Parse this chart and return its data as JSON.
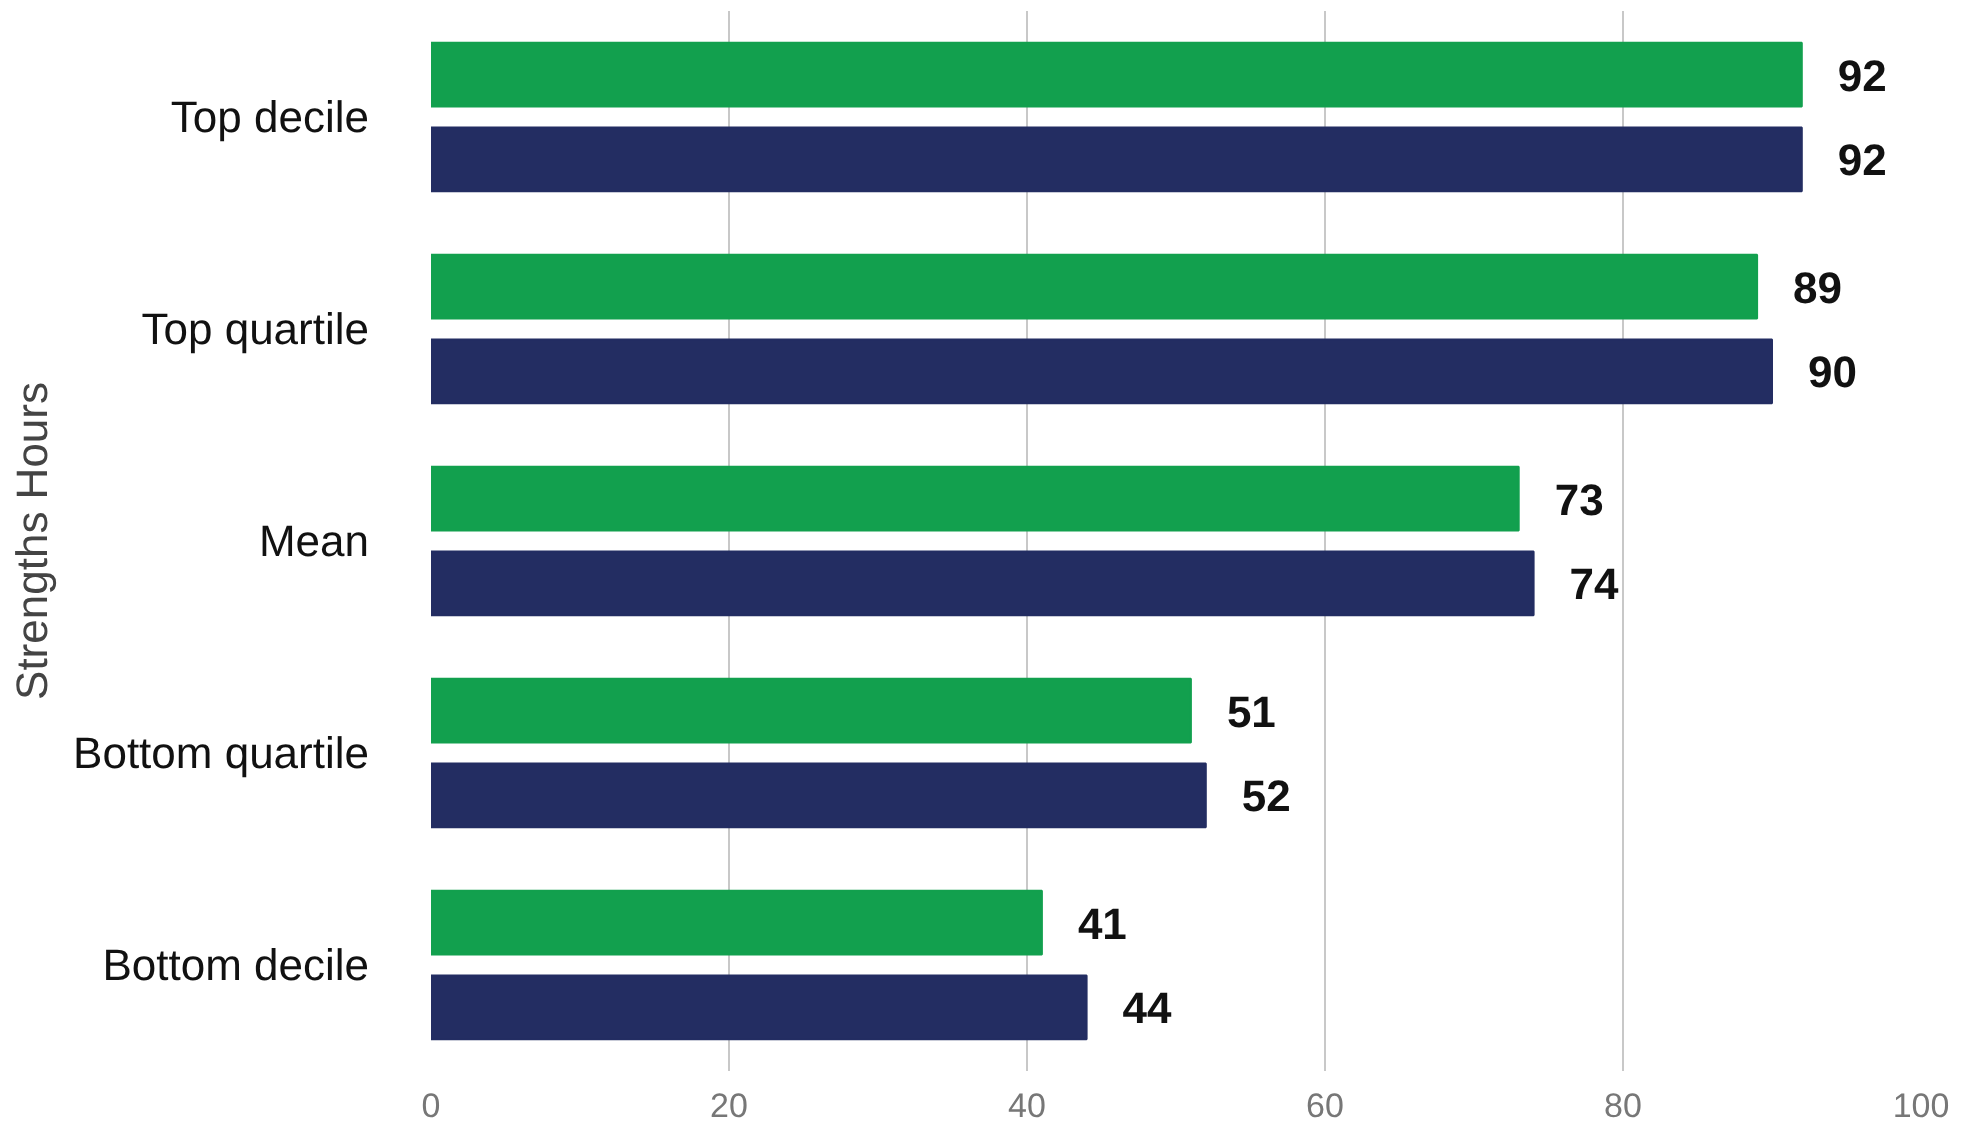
{
  "chart_data": {
    "type": "bar",
    "orientation": "horizontal",
    "ylabel": "Strengths Hours",
    "categories": [
      "Top decile",
      "Top quartile",
      "Mean",
      "Bottom quartile",
      "Bottom decile"
    ],
    "series": [
      {
        "color": "#12a04e",
        "values": [
          92,
          89,
          73,
          51,
          41
        ]
      },
      {
        "color": "#232d62",
        "values": [
          92,
          90,
          74,
          52,
          44
        ]
      }
    ],
    "xlim": [
      0,
      100
    ],
    "xticks": [
      0,
      20,
      40,
      60,
      80,
      100
    ],
    "grid": "x",
    "data_labels": true
  }
}
